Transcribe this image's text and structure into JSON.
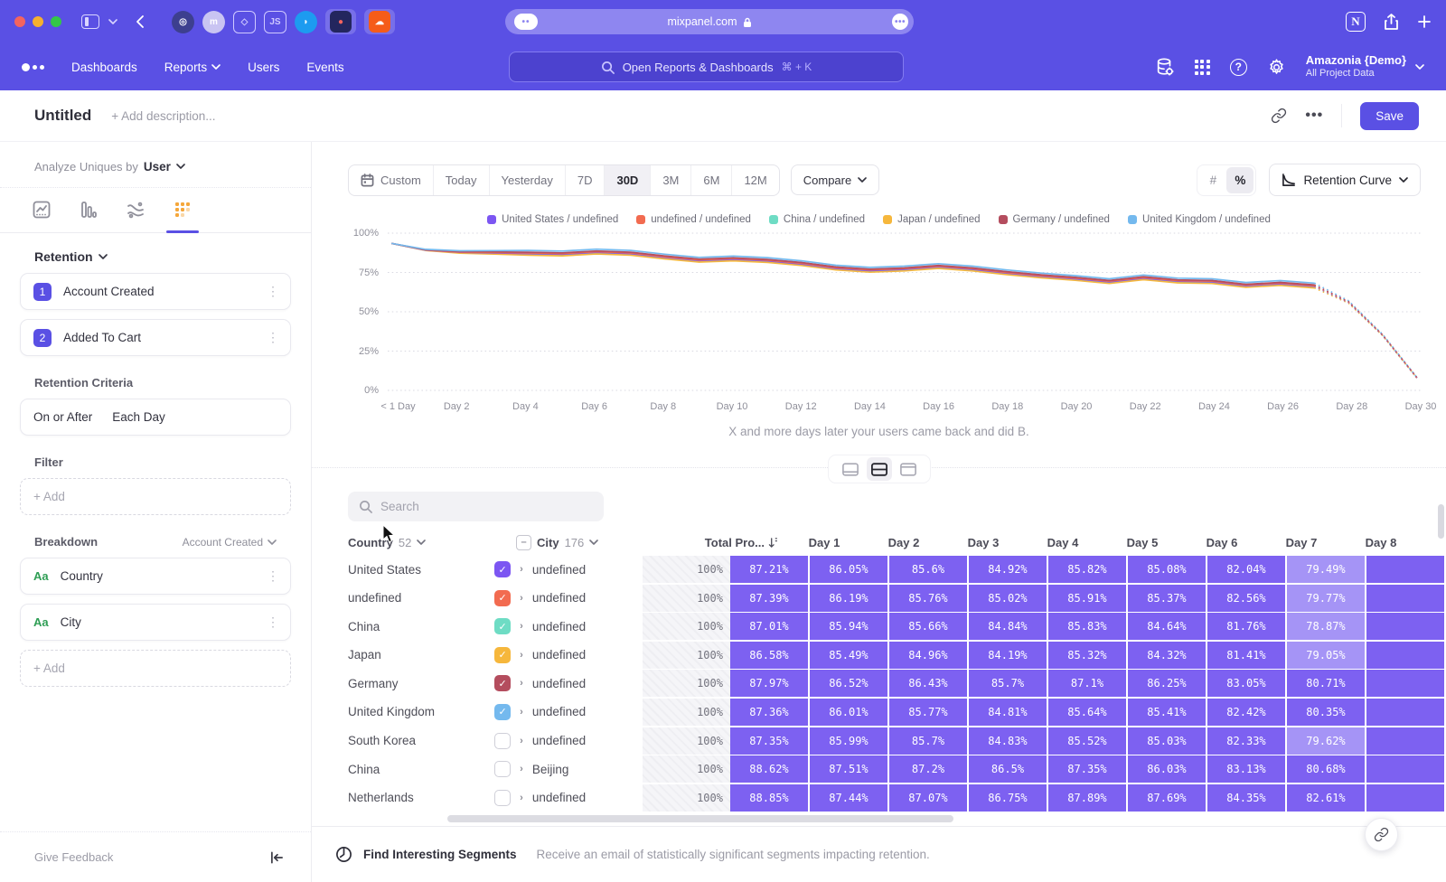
{
  "colors": {
    "accent": "#5a50e4",
    "cell_purple": "#7d61f1",
    "cell_purple_light": "#a594f6",
    "traffic_lights": [
      "#f4645f",
      "#f5b02f",
      "#33c748"
    ]
  },
  "browser": {
    "url": "mixpanel.com",
    "favicons": [
      {
        "name": "circle-ring-favicon",
        "bg": "#3d3f8f",
        "glyph": "◎"
      },
      {
        "name": "m-favicon",
        "bg": "#c9c4f2",
        "glyph": "m"
      },
      {
        "name": "cube-favicon",
        "bg": "transparent",
        "glyph": "◇"
      },
      {
        "name": "js-favicon",
        "bg": "transparent",
        "glyph": "JS"
      },
      {
        "name": "bird-favicon",
        "bg": "#1d9bf0",
        "glyph": "◗"
      },
      {
        "name": "red-dot-favicon",
        "bg": "#23265e",
        "glyph": "●",
        "tabbed": true,
        "glyphColor": "#f4645f"
      },
      {
        "name": "cloud-favicon",
        "bg": "#f55c19",
        "glyph": "☁",
        "tabbed": true
      }
    ]
  },
  "nav": {
    "items": [
      {
        "label": "Dashboards",
        "dropdown": false
      },
      {
        "label": "Reports",
        "dropdown": true
      },
      {
        "label": "Users",
        "dropdown": false
      },
      {
        "label": "Events",
        "dropdown": false
      }
    ],
    "search_placeholder": "Open Reports & Dashboards",
    "search_shortcut": "⌘ + K",
    "project_name": "Amazonia {Demo}",
    "project_sub": "All Project Data"
  },
  "header": {
    "title": "Untitled",
    "description_placeholder": "+ Add description...",
    "save_label": "Save"
  },
  "sidebar": {
    "analyze_label": "Analyze Uniques by",
    "analyze_value": "User",
    "tabs": [
      {
        "name": "insights-tab"
      },
      {
        "name": "funnels-tab"
      },
      {
        "name": "flows-tab"
      },
      {
        "name": "retention-tab",
        "active": true
      }
    ],
    "section_label": "Retention",
    "steps": [
      {
        "num": "1",
        "label": "Account Created"
      },
      {
        "num": "2",
        "label": "Added To Cart"
      }
    ],
    "criteria_label": "Retention Criteria",
    "criteria_value_1": "On or After",
    "criteria_value_2": "Each Day",
    "filter_label": "Filter",
    "filter_add": "+ Add",
    "breakdown_label": "Breakdown",
    "breakdown_scope": "Account Created",
    "breakdown_items": [
      {
        "icon": "Aa",
        "label": "Country"
      },
      {
        "icon": "Aa",
        "label": "City"
      }
    ],
    "breakdown_add": "+ Add",
    "feedback": "Give Feedback"
  },
  "toolbar": {
    "ranges": [
      "Custom",
      "Today",
      "Yesterday",
      "7D",
      "30D",
      "3M",
      "6M",
      "12M"
    ],
    "active_range": "30D",
    "compare_label": "Compare",
    "format_options": [
      "#",
      "%"
    ],
    "active_format": "%",
    "chart_type": "Retention Curve"
  },
  "chart_data": {
    "type": "line",
    "title": "",
    "xlabel": "",
    "ylabel": "",
    "ylim": [
      0,
      100
    ],
    "y_ticks": [
      "100%",
      "75%",
      "50%",
      "25%",
      "0%"
    ],
    "x_tick_labels": [
      "< 1 Day",
      "Day 2",
      "Day 4",
      "Day 6",
      "Day 8",
      "Day 10",
      "Day 12",
      "Day 14",
      "Day 16",
      "Day 18",
      "Day 20",
      "Day 22",
      "Day 24",
      "Day 26",
      "Day 28",
      "Day 30"
    ],
    "caption": "X and more days later your users came back and did B.",
    "dashed_from_index": 27,
    "legend_position": "top",
    "series": [
      {
        "name": "China / undefined",
        "color": "#6edcc4",
        "values": [
          93.5,
          89.1,
          87.7,
          87.2,
          86.7,
          86.3,
          87.5,
          86.7,
          84.3,
          82.3,
          83.1,
          82.1,
          80.1,
          77.3,
          75.9,
          76.7,
          78.3,
          76.7,
          74.3,
          72.3,
          70.7,
          68.7,
          71.1,
          69.1,
          68.7,
          66.3,
          67.5,
          65.9,
          55.9,
          34.9,
          8.0
        ]
      },
      {
        "name": "Japan / undefined",
        "color": "#f6b73c",
        "values": [
          93.5,
          89.0,
          87.3,
          86.7,
          86.0,
          85.6,
          86.8,
          86.0,
          83.6,
          81.6,
          82.4,
          81.4,
          79.4,
          76.6,
          75.2,
          76.0,
          77.6,
          76.0,
          73.6,
          71.6,
          70.0,
          68.0,
          70.4,
          68.4,
          68.0,
          65.6,
          66.8,
          65.2,
          55.5,
          34.8,
          7.9
        ]
      },
      {
        "name": "United States / undefined",
        "color": "#7c56f2",
        "values": [
          93.5,
          89.2,
          87.8,
          87.4,
          87.0,
          86.6,
          87.8,
          87.0,
          84.6,
          82.6,
          83.4,
          82.4,
          80.4,
          77.6,
          76.2,
          77.0,
          78.6,
          77.0,
          74.6,
          72.6,
          71.0,
          69.0,
          71.4,
          69.4,
          69.0,
          66.6,
          67.8,
          66.2,
          56.0,
          35.0,
          8.0
        ]
      },
      {
        "name": "undefined / undefined",
        "color": "#f26b50",
        "values": [
          93.5,
          89.3,
          88.0,
          87.7,
          87.4,
          87.0,
          88.2,
          87.4,
          85.0,
          83.0,
          83.8,
          82.8,
          80.8,
          78.0,
          76.6,
          77.4,
          79.0,
          77.4,
          75.0,
          73.0,
          71.4,
          69.4,
          71.8,
          69.8,
          69.4,
          67.0,
          68.2,
          66.6,
          56.2,
          35.1,
          8.0
        ]
      },
      {
        "name": "Germany / undefined",
        "color": "#b44d5e",
        "values": [
          93.5,
          89.4,
          88.3,
          88.1,
          87.9,
          87.5,
          88.7,
          87.9,
          85.5,
          83.5,
          84.3,
          83.3,
          81.3,
          78.5,
          77.1,
          77.9,
          79.5,
          77.9,
          75.5,
          73.5,
          71.9,
          69.9,
          72.3,
          70.3,
          69.9,
          67.5,
          68.7,
          67.1,
          56.5,
          35.2,
          8.1
        ]
      },
      {
        "name": "United Kingdom / undefined",
        "color": "#74b9ee",
        "values": [
          93.5,
          89.7,
          88.8,
          88.9,
          89.0,
          88.6,
          89.8,
          89.0,
          86.6,
          84.6,
          85.4,
          84.4,
          82.4,
          79.6,
          78.2,
          79.0,
          80.6,
          79.0,
          76.6,
          74.6,
          73.0,
          71.0,
          73.4,
          71.4,
          71.0,
          68.6,
          69.8,
          68.2,
          57.0,
          35.5,
          8.2
        ]
      }
    ],
    "legend": [
      {
        "label": "United States / undefined",
        "color": "#7c56f2"
      },
      {
        "label": "undefined / undefined",
        "color": "#f26b50"
      },
      {
        "label": "China / undefined",
        "color": "#6edcc4"
      },
      {
        "label": "Japan / undefined",
        "color": "#f6b73c"
      },
      {
        "label": "Germany / undefined",
        "color": "#b44d5e"
      },
      {
        "label": "United Kingdom / undefined",
        "color": "#74b9ee"
      }
    ]
  },
  "table": {
    "search_placeholder": "Search",
    "country_col": "Country",
    "country_count": "52",
    "city_col": "City",
    "city_count": "176",
    "total_col": "Total Pro...",
    "day_cols": [
      "Day 1",
      "Day 2",
      "Day 3",
      "Day 4",
      "Day 5",
      "Day 6",
      "Day 7",
      "Day 8"
    ],
    "rows": [
      {
        "country": "United States",
        "checked": true,
        "color": "#7c56f2",
        "city": "undefined",
        "total": "100%",
        "values": [
          "87.21%",
          "86.05%",
          "85.6%",
          "84.92%",
          "85.82%",
          "85.08%",
          "82.04%",
          "79.49%"
        ]
      },
      {
        "country": "undefined",
        "checked": true,
        "color": "#f26b50",
        "city": "undefined",
        "total": "100%",
        "values": [
          "87.39%",
          "86.19%",
          "85.76%",
          "85.02%",
          "85.91%",
          "85.37%",
          "82.56%",
          "79.77%"
        ]
      },
      {
        "country": "China",
        "checked": true,
        "color": "#6edcc4",
        "city": "undefined",
        "total": "100%",
        "values": [
          "87.01%",
          "85.94%",
          "85.66%",
          "84.84%",
          "85.83%",
          "84.64%",
          "81.76%",
          "78.87%"
        ]
      },
      {
        "country": "Japan",
        "checked": true,
        "color": "#f6b73c",
        "city": "undefined",
        "total": "100%",
        "values": [
          "86.58%",
          "85.49%",
          "84.96%",
          "84.19%",
          "85.32%",
          "84.32%",
          "81.41%",
          "79.05%"
        ]
      },
      {
        "country": "Germany",
        "checked": true,
        "color": "#b44d5e",
        "city": "undefined",
        "total": "100%",
        "values": [
          "87.97%",
          "86.52%",
          "86.43%",
          "85.7%",
          "87.1%",
          "86.25%",
          "83.05%",
          "80.71%"
        ]
      },
      {
        "country": "United Kingdom",
        "checked": true,
        "color": "#74b9ee",
        "city": "undefined",
        "total": "100%",
        "values": [
          "87.36%",
          "86.01%",
          "85.77%",
          "84.81%",
          "85.64%",
          "85.41%",
          "82.42%",
          "80.35%"
        ]
      },
      {
        "country": "South Korea",
        "checked": false,
        "color": "",
        "city": "undefined",
        "total": "100%",
        "values": [
          "87.35%",
          "85.99%",
          "85.7%",
          "84.83%",
          "85.52%",
          "85.03%",
          "82.33%",
          "79.62%"
        ]
      },
      {
        "country": "China",
        "checked": false,
        "color": "",
        "city": "Beijing",
        "total": "100%",
        "values": [
          "88.62%",
          "87.51%",
          "87.2%",
          "86.5%",
          "87.35%",
          "86.03%",
          "83.13%",
          "80.68%"
        ]
      },
      {
        "country": "Netherlands",
        "checked": false,
        "color": "",
        "city": "undefined",
        "total": "100%",
        "values": [
          "88.85%",
          "87.44%",
          "87.07%",
          "86.75%",
          "87.89%",
          "87.69%",
          "84.35%",
          "82.61%"
        ]
      }
    ]
  },
  "footer": {
    "title": "Find Interesting Segments",
    "description": "Receive an email of statistically significant segments impacting retention."
  }
}
